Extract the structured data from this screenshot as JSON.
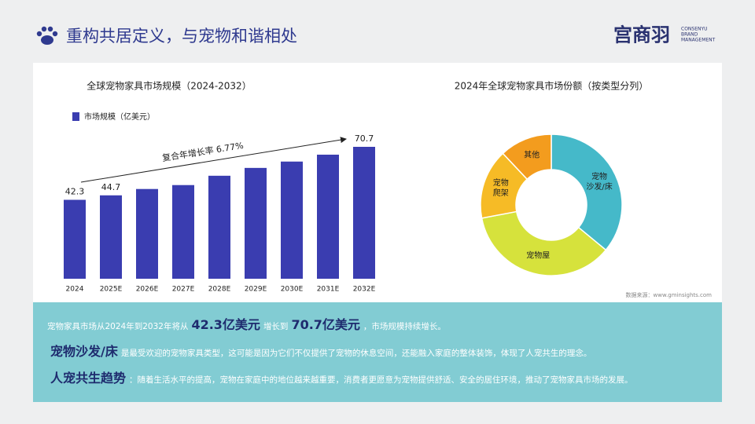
{
  "header": {
    "title": "重构共居定义，与宠物和谐相处",
    "logo": "宫商羽",
    "logo_sub": [
      "CONSENYU",
      "BRAND",
      "MANAGEMENT"
    ]
  },
  "chart_data": [
    {
      "type": "bar",
      "title": "全球宠物家具市场规模（2024-2032）",
      "categories": [
        "2024",
        "2025E",
        "2026E",
        "2027E",
        "2028E",
        "2029E",
        "2030E",
        "2031E",
        "2032E"
      ],
      "series": [
        {
          "name": "市场规模（亿美元）",
          "color": "#3a3db0",
          "values": [
            42.3,
            44.7,
            48.1,
            50.2,
            55.2,
            59.4,
            62.8,
            66.5,
            70.7
          ],
          "value_labels": [
            "42.3",
            "44.7",
            null,
            null,
            null,
            null,
            null,
            null,
            "70.7"
          ]
        }
      ],
      "annotation": "复合年增长率 6.77%"
    },
    {
      "type": "pie",
      "title": "2024年全球宠物家具市场份额（按类型分列）",
      "categories": [
        "宠物\n沙发/床",
        "宠物屋",
        "宠物\n爬架",
        "其他"
      ],
      "values": [
        36,
        36,
        16,
        12
      ],
      "colors": [
        "#45b9c9",
        "#d6e23c",
        "#f6bb26",
        "#f39c1e"
      ],
      "source": "数据来源：www.gminsights.com"
    }
  ],
  "summary": {
    "lines": [
      [
        {
          "text": "宠物家具市场从2024年到2032年将从",
          "emphasis": false
        },
        {
          "text": "42.3亿美元",
          "emphasis": true
        },
        {
          "text": "增长到",
          "emphasis": false
        },
        {
          "text": "70.7亿美元",
          "emphasis": true
        },
        {
          "text": "，市场规模持续增长。",
          "emphasis": false
        }
      ],
      [
        {
          "text": "宠物沙发/床",
          "emphasis": true
        },
        {
          "text": "是最受欢迎的宠物家具类型，这可能是因为它们不仅提供了宠物的休息空间，还能融入家庭的整体装饰，体现了人宠共生的理念。",
          "emphasis": false
        }
      ],
      [
        {
          "text": "人宠共生趋势",
          "emphasis": true
        },
        {
          "text": "：随着生活水平的提高，宠物在家庭中的地位越来越重要，消费者更愿意为宠物提供舒适、安全的居住环境，推动了宠物家具市场的发展。",
          "emphasis": false
        }
      ]
    ]
  }
}
